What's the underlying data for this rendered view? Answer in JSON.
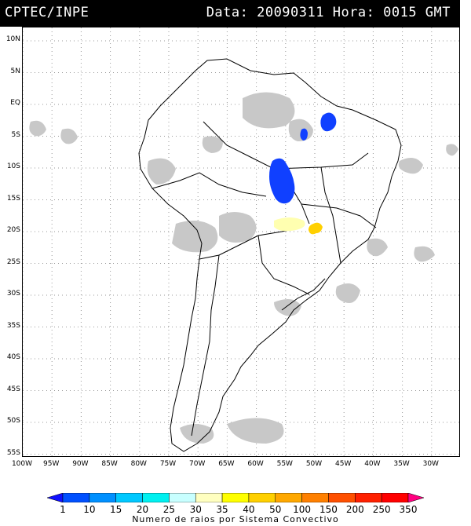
{
  "header": {
    "source": "CPTEC/INPE",
    "datetime": "Data: 20090311 Hora: 0015 GMT"
  },
  "map": {
    "lat_labels": [
      "10N",
      "5N",
      "EQ",
      "5S",
      "10S",
      "15S",
      "20S",
      "25S",
      "30S",
      "35S",
      "40S",
      "45S",
      "50S",
      "55S"
    ],
    "lon_labels": [
      "100W",
      "95W",
      "90W",
      "85W",
      "80W",
      "75W",
      "70W",
      "65W",
      "60W",
      "55W",
      "50W",
      "45W",
      "40W",
      "35W",
      "30W"
    ],
    "grid": true,
    "colors": {
      "cloud": "#c8c8c8",
      "coastline": "#000000",
      "gridline": "#9a9a9a"
    },
    "lightning_regions": [
      {
        "name": "central-brazil-cluster",
        "class_color": "#0040ff"
      },
      {
        "name": "northeast-brazil-cluster",
        "class_color": "#0040ff"
      },
      {
        "name": "southeast-brazil-cluster",
        "class_color": "#ffd000"
      },
      {
        "name": "southern-plateau-cluster",
        "class_color": "#ffffb0"
      }
    ]
  },
  "colorbar": {
    "title": "Numero de raios por Sistema Convectivo",
    "labels": [
      "1",
      "10",
      "15",
      "20",
      "25",
      "30",
      "35",
      "40",
      "50",
      "100",
      "150",
      "200",
      "250",
      "350"
    ],
    "colors": [
      "#1010ff",
      "#0050ff",
      "#0090ff",
      "#00c8ff",
      "#00f0f0",
      "#c8ffff",
      "#ffffc0",
      "#ffff00",
      "#ffd000",
      "#ffa800",
      "#ff8000",
      "#ff5000",
      "#ff2000",
      "#ff0000",
      "#ff0080"
    ]
  }
}
